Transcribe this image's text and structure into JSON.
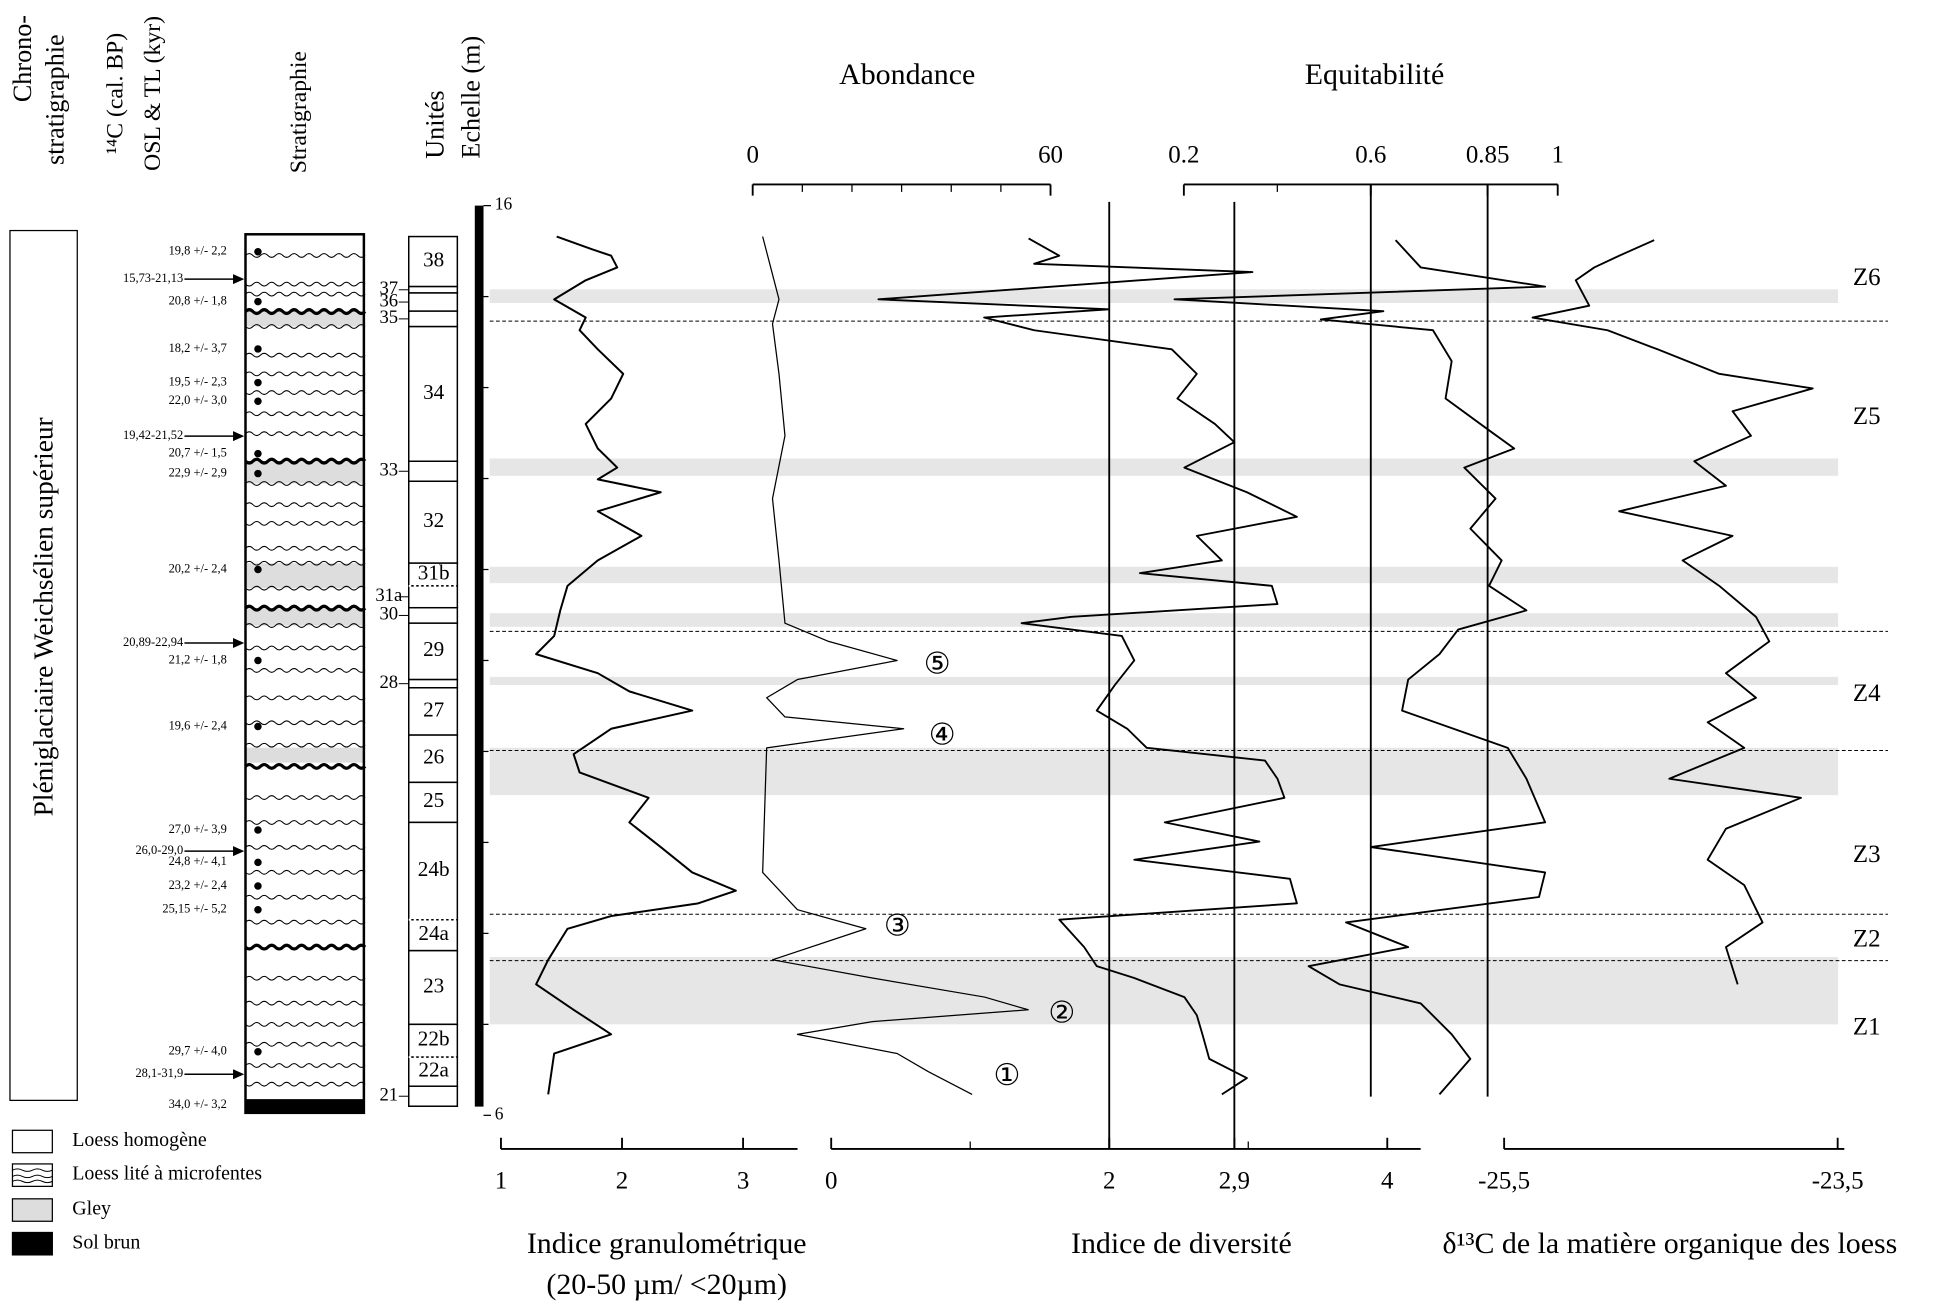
{
  "headers": {
    "chronostratigraphy": [
      "Chrono-",
      "stratigraphie"
    ],
    "c14": "¹⁴C (cal. BP)",
    "osl": "OSL & TL (kyr)",
    "stratigraphy": "Stratigraphie",
    "units": "Unités"
  },
  "chronostratigraphy": "Pléniglaciaire Weichsélien supérieur",
  "depth_axis": {
    "title": "Echelle (m)",
    "lim": [
      6,
      16
    ],
    "ticks": [
      6,
      16
    ],
    "minor_ticks": [
      7,
      8,
      9,
      10,
      11,
      12,
      13,
      14,
      15
    ]
  },
  "units": [
    {
      "label": "38",
      "top": 15.66,
      "bottom": 15.11
    },
    {
      "label": "37",
      "top": 15.11,
      "bottom": 15.04
    },
    {
      "label": "36",
      "top": 15.04,
      "bottom": 14.84
    },
    {
      "label": "35",
      "top": 14.84,
      "bottom": 14.67
    },
    {
      "label": "34",
      "top": 14.67,
      "bottom": 13.19
    },
    {
      "label": "33",
      "top": 13.19,
      "bottom": 12.97
    },
    {
      "label": "32",
      "top": 12.97,
      "bottom": 12.07
    },
    {
      "label": "31b",
      "top": 12.07,
      "bottom": 11.82
    },
    {
      "label": "31a",
      "top": 11.82,
      "bottom": 11.58
    },
    {
      "label": "30",
      "top": 11.58,
      "bottom": 11.41
    },
    {
      "label": "29",
      "top": 11.41,
      "bottom": 10.79
    },
    {
      "label": "28",
      "top": 10.79,
      "bottom": 10.7
    },
    {
      "label": "27",
      "top": 10.7,
      "bottom": 10.18
    },
    {
      "label": "26",
      "top": 10.18,
      "bottom": 9.66
    },
    {
      "label": "25",
      "top": 9.66,
      "bottom": 9.22
    },
    {
      "label": "24b",
      "top": 9.22,
      "bottom": 8.15
    },
    {
      "label": "24a",
      "top": 8.15,
      "bottom": 7.81
    },
    {
      "label": "23",
      "top": 7.81,
      "bottom": 7.0
    },
    {
      "label": "22b",
      "top": 7.0,
      "bottom": 6.64
    },
    {
      "label": "22a",
      "top": 6.64,
      "bottom": 6.32
    },
    {
      "label": "21",
      "top": 6.32,
      "bottom": 6.1
    }
  ],
  "dates_osl": [
    "19,8 +/- 2,2",
    "20,8 +/- 1,8",
    "18,2 +/- 3,7",
    "19,5 +/- 2,3",
    "22,0 +/- 3,0",
    "20,7 +/- 1,5",
    "22,9 +/- 2,9",
    "20,2 +/- 2,4",
    "21,2 +/- 1,8",
    "19,6 +/- 2,4",
    "27,0 +/- 3,9",
    "24,8 +/- 4,1",
    "23,2 +/- 2,4",
    "25,15 +/- 5,2",
    "29,7 +/- 4,0",
    "34,0 +/- 3,2"
  ],
  "dates_c14": [
    "15,73-21,13",
    "19,42-21,52",
    "20,89-22,94",
    "26,0-29,0",
    "28,1-31,9"
  ],
  "zones": [
    {
      "label": "Z6",
      "depth": 15.19
    },
    {
      "label": "Z5",
      "depth": 13.66
    },
    {
      "label": "Z4",
      "depth": 10.62
    },
    {
      "label": "Z3",
      "depth": 8.85
    },
    {
      "label": "Z2",
      "depth": 7.92
    },
    {
      "label": "Z1",
      "depth": 6.95
    }
  ],
  "zone_boundaries": [
    14.73,
    11.32,
    10.01,
    8.21,
    7.7
  ],
  "gley_bands": [
    [
      15.08,
      14.93
    ],
    [
      13.22,
      13.03
    ],
    [
      12.03,
      11.85
    ],
    [
      11.52,
      11.37
    ],
    [
      10.82,
      10.73
    ],
    [
      10.04,
      9.52
    ],
    [
      7.74,
      7.0
    ]
  ],
  "curves": [
    {
      "title": "Indice granulométrique",
      "subtitle": "(20-50 µm/ <20µm)",
      "xlim": [
        1,
        3.45
      ],
      "xticks": [
        1,
        2,
        3
      ],
      "depth": [
        15.66,
        15.52,
        15.45,
        15.32,
        15.18,
        14.97,
        14.77,
        14.63,
        14.42,
        14.15,
        13.88,
        13.6,
        13.33,
        13.12,
        12.99,
        12.85,
        12.64,
        12.37,
        12.1,
        11.82,
        11.55,
        11.27,
        11.07,
        10.86,
        10.66,
        10.45,
        10.25,
        9.97,
        9.77,
        9.49,
        9.22,
        8.95,
        8.67,
        8.47,
        8.33,
        8.19,
        8.05,
        7.71,
        7.44,
        7.16,
        6.89,
        6.68,
        6.23
      ],
      "values": [
        1.46,
        1.75,
        1.91,
        1.96,
        1.7,
        1.44,
        1.7,
        1.65,
        1.8,
        2.01,
        1.91,
        1.7,
        1.8,
        1.96,
        1.8,
        2.32,
        1.8,
        2.16,
        1.8,
        1.55,
        1.49,
        1.44,
        1.29,
        1.8,
        2.06,
        2.58,
        1.91,
        1.6,
        1.65,
        2.22,
        2.06,
        2.32,
        2.58,
        2.94,
        2.63,
        1.91,
        1.55,
        1.39,
        1.29,
        1.6,
        1.91,
        1.44,
        1.39
      ]
    },
    {
      "title": "Abondance",
      "xlim": [
        0,
        60
      ],
      "xticks": [
        0,
        60
      ],
      "minor_xticks": [
        10,
        20,
        30,
        40,
        50
      ],
      "depth": [
        15.66,
        14.97,
        14.7,
        14.15,
        13.47,
        12.78,
        12.1,
        11.41,
        11.21,
        11.0,
        10.79,
        10.59,
        10.38,
        10.25,
        10.04,
        8.67,
        8.26,
        8.05,
        7.71,
        7.51,
        7.3,
        7.16,
        7.03,
        6.89,
        6.68,
        6.48,
        6.23
      ],
      "values": [
        2.0,
        5.3,
        4.0,
        5.3,
        6.5,
        4.0,
        5.3,
        6.5,
        15.3,
        29.1,
        9.0,
        2.8,
        6.5,
        30.4,
        2.8,
        2.0,
        9.0,
        22.8,
        4.0,
        24.1,
        46.7,
        55.5,
        24.1,
        9.0,
        29.1,
        35.4,
        44.2
      ],
      "annotations": [
        "⑤",
        "④",
        "③",
        "②",
        "①"
      ]
    },
    {
      "title": "Indice de diversité",
      "xlim": [
        0,
        4.24
      ],
      "xticks": [
        0,
        2,
        {
          "value": 2.9,
          "label": "2,9"
        },
        4
      ],
      "minor_xticks": [
        1,
        3
      ],
      "reference_lines": [
        2,
        2.9
      ],
      "depth": [
        15.64,
        15.45,
        15.36,
        15.27,
        14.97,
        14.86,
        14.77,
        14.63,
        14.42,
        14.15,
        13.88,
        13.6,
        13.4,
        13.12,
        12.85,
        12.58,
        12.37,
        12.1,
        11.96,
        11.82,
        11.62,
        11.48,
        11.41,
        11.27,
        11.0,
        10.73,
        10.45,
        10.25,
        10.04,
        9.9,
        9.7,
        9.49,
        9.22,
        9.01,
        8.81,
        8.6,
        8.33,
        8.15,
        7.85,
        7.64,
        7.51,
        7.3,
        7.1,
        6.89,
        6.62,
        6.41,
        6.23
      ],
      "values": [
        1.42,
        1.64,
        1.46,
        3.03,
        0.34,
        2.0,
        1.1,
        1.46,
        2.45,
        2.63,
        2.49,
        2.76,
        2.9,
        2.54,
        2.99,
        3.35,
        2.63,
        2.81,
        2.22,
        3.17,
        3.21,
        1.73,
        1.37,
        2.09,
        2.18,
        2.04,
        1.91,
        2.13,
        2.27,
        3.12,
        3.21,
        3.26,
        2.4,
        3.08,
        2.18,
        3.3,
        3.35,
        1.64,
        1.82,
        1.91,
        2.18,
        2.54,
        2.63,
        2.67,
        2.72,
        2.99,
        2.81
      ]
    },
    {
      "title": "Equitabilité",
      "xlim": [
        0.2,
        1
      ],
      "xticks": [
        0.2,
        0.6,
        0.85,
        1
      ],
      "minor_xticks": [
        0.4
      ],
      "reference_lines": [
        0.6,
        0.85
      ],
      "depth": [
        15.62,
        15.32,
        15.11,
        14.97,
        14.84,
        14.75,
        14.63,
        14.29,
        13.88,
        13.53,
        13.33,
        13.12,
        12.78,
        12.45,
        12.1,
        11.82,
        11.55,
        11.34,
        11.07,
        10.79,
        10.45,
        10.04,
        9.7,
        9.22,
        8.95,
        8.67,
        8.4,
        8.12,
        7.85,
        7.64,
        7.44,
        7.23,
        6.89,
        6.62,
        6.23
      ],
      "values": [
        0.653,
        0.707,
        0.973,
        0.18,
        0.627,
        0.493,
        0.733,
        0.773,
        0.76,
        0.853,
        0.907,
        0.8,
        0.867,
        0.813,
        0.88,
        0.853,
        0.933,
        0.787,
        0.747,
        0.68,
        0.667,
        0.893,
        0.933,
        0.973,
        0.6,
        0.973,
        0.96,
        0.547,
        0.68,
        0.467,
        0.533,
        0.707,
        0.773,
        0.813,
        0.747
      ]
    },
    {
      "title": "δ¹³C de la matière organique des loess",
      "xlim": [
        -25.5,
        -23.46
      ],
      "xticks": [
        {
          "value": -25.5,
          "label": "-25,5"
        },
        {
          "value": -23.5,
          "label": "-23,5"
        }
      ],
      "depth": [
        15.62,
        15.45,
        15.32,
        15.18,
        14.9,
        14.77,
        14.63,
        14.42,
        14.15,
        13.99,
        13.74,
        13.47,
        13.19,
        12.92,
        12.64,
        12.37,
        12.1,
        11.82,
        11.48,
        11.21,
        10.86,
        10.59,
        10.32,
        10.04,
        9.7,
        9.49,
        9.15,
        8.81,
        8.53,
        8.12,
        7.85,
        7.44
      ],
      "values": [
        -24.6,
        -24.81,
        -24.96,
        -25.07,
        -24.99,
        -25.33,
        -24.88,
        -24.58,
        -24.21,
        -23.65,
        -24.13,
        -24.02,
        -24.36,
        -24.17,
        -24.81,
        -24.13,
        -24.43,
        -24.21,
        -23.99,
        -23.91,
        -24.17,
        -23.99,
        -24.28,
        -24.06,
        -24.51,
        -23.72,
        -24.17,
        -24.28,
        -24.06,
        -23.95,
        -24.17,
        -24.1
      ]
    }
  ],
  "legend": [
    "Loess homogène",
    "Loess lité à microfentes",
    "Gley",
    "Sol brun"
  ]
}
